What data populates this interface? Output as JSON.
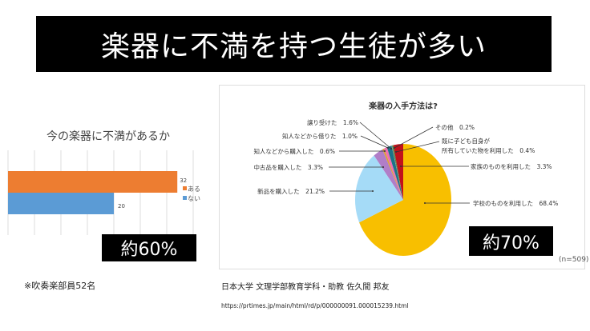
{
  "slide": {
    "title": "楽器に不満を持つ生徒が多い",
    "note_left": "※吹奏楽部員52名",
    "credit": "日本大学 文理学部教育学科・助教 佐久間 邦友",
    "url": "https://prtimes.jp/main/html/rd/p/000000091.000015239.html"
  },
  "chart_data": [
    {
      "type": "bar",
      "orientation": "horizontal",
      "title": "今の楽器に不満があるか",
      "categories": [
        "ある",
        "ない"
      ],
      "values": [
        32,
        20
      ],
      "colors": [
        "#ed7d31",
        "#5b9bd5"
      ],
      "xlim": [
        0,
        35
      ],
      "grid": true,
      "legend": "right",
      "callout": "約60%"
    },
    {
      "type": "pie",
      "title": "楽器の入手方法は?",
      "n_label": "(n=509)",
      "callout": "約70%",
      "slices": [
        {
          "label": "学校のものを利用した",
          "value": 68.4,
          "text": "68.4%",
          "color": "#f8bf00"
        },
        {
          "label": "新品を購入した",
          "value": 21.2,
          "text": "21.2%",
          "color": "#a5dbf7"
        },
        {
          "label": "中古品を購入した",
          "value": 3.3,
          "text": "3.3%",
          "color": "#b17ec8"
        },
        {
          "label": "知人などから購入した",
          "value": 0.6,
          "text": "0.6%",
          "color": "#d9a03a"
        },
        {
          "label": "知人などから借りた",
          "value": 1.0,
          "text": "1.0%",
          "color": "#ef6fb3"
        },
        {
          "label": "譲り受けた",
          "value": 1.6,
          "text": "1.6%",
          "color": "#1b7487"
        },
        {
          "label": "その他",
          "value": 0.2,
          "text": "0.2%",
          "color": "#888888"
        },
        {
          "label": "既に子ども自身が所有していた物を利用した",
          "label_lines": [
            "既に子ども自身が",
            "所有していた物を利用した"
          ],
          "value": 0.4,
          "text": "0.4%",
          "color": "#4d8a3b"
        },
        {
          "label": "家族のものを利用した",
          "value": 3.3,
          "text": "3.3%",
          "color": "#c1121c"
        }
      ]
    }
  ]
}
